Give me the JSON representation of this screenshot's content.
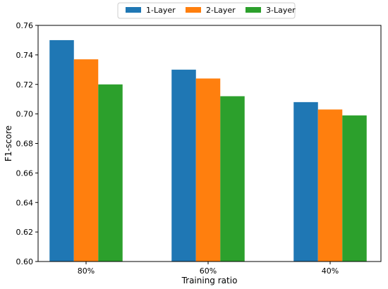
{
  "chart_data": {
    "type": "bar",
    "title": "",
    "xlabel": "Training ratio",
    "ylabel": "F1-score",
    "categories": [
      "80%",
      "60%",
      "40%"
    ],
    "series": [
      {
        "name": "1-Layer",
        "color": "#1f77b4",
        "values": [
          0.75,
          0.73,
          0.708
        ]
      },
      {
        "name": "2-Layer",
        "color": "#ff7f0e",
        "values": [
          0.737,
          0.724,
          0.703
        ]
      },
      {
        "name": "3-Layer",
        "color": "#2ca02c",
        "values": [
          0.72,
          0.712,
          0.699
        ]
      }
    ],
    "ylim": [
      0.6,
      0.76
    ],
    "yticks": [
      "0.60",
      "0.62",
      "0.64",
      "0.66",
      "0.68",
      "0.70",
      "0.72",
      "0.74",
      "0.76"
    ],
    "grid": false,
    "legend_position": "top-center"
  }
}
